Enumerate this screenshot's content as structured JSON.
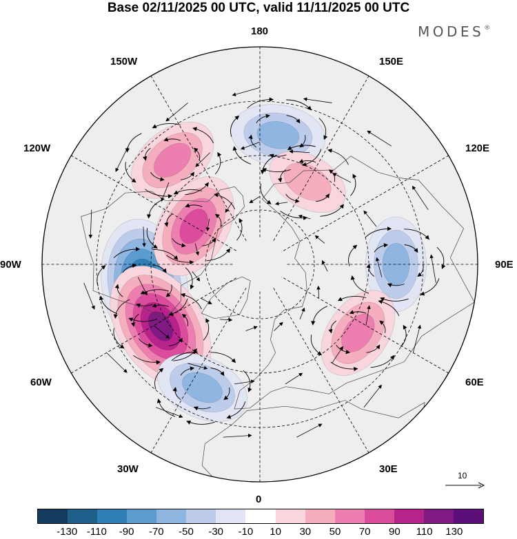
{
  "title": "Base 02/11/2025 00 UTC, valid 11/11/2025 00 UTC",
  "brand": "MODES",
  "brand_mark": "®",
  "longitude_labels": {
    "top": "180",
    "top_left": "150W",
    "top_right": "150E",
    "upper_left": "120W",
    "upper_right": "120E",
    "left": "90W",
    "right": "90E",
    "lower_left": "60W",
    "lower_right": "60E",
    "bottom_left": "30W",
    "bottom_right": "30E",
    "bottom": "0"
  },
  "reference_vector_label": "10",
  "colorbar": {
    "ticks": [
      "-130",
      "-110",
      "-90",
      "-70",
      "-50",
      "-30",
      "-10",
      "10",
      "30",
      "50",
      "70",
      "90",
      "110",
      "130"
    ],
    "colors": [
      "#143a5e",
      "#1f5f8b",
      "#2f7eb6",
      "#5a9bd0",
      "#8fb6e0",
      "#bcccea",
      "#e2e5f3",
      "#ffffff",
      "#f9d6dd",
      "#f4aebd",
      "#ec7fb0",
      "#dc4c9c",
      "#b8228b",
      "#7e1a82",
      "#5c0f78"
    ]
  },
  "anomaly_centers": [
    {
      "name": "neg-atlantic-west",
      "value": -130,
      "lon": -80,
      "lat": 47
    },
    {
      "name": "pos-atlantic",
      "value": 130,
      "lon": -58,
      "lat": 47
    },
    {
      "name": "pos-pacific-east",
      "value": 70,
      "lon": -140,
      "lat": 40
    },
    {
      "name": "pos-canada",
      "value": 90,
      "lon": -120,
      "lat": 62
    },
    {
      "name": "neg-pacific",
      "value": -70,
      "lon": 172,
      "lat": 42
    },
    {
      "name": "neg-siberia",
      "value": -70,
      "lon": 90,
      "lat": 40
    },
    {
      "name": "pos-ural",
      "value": 70,
      "lon": 55,
      "lat": 46
    },
    {
      "name": "neg-east-atlantic",
      "value": -70,
      "lon": -25,
      "lat": 40
    },
    {
      "name": "pos-east-asia",
      "value": 50,
      "lon": 150,
      "lat": 55
    }
  ]
}
